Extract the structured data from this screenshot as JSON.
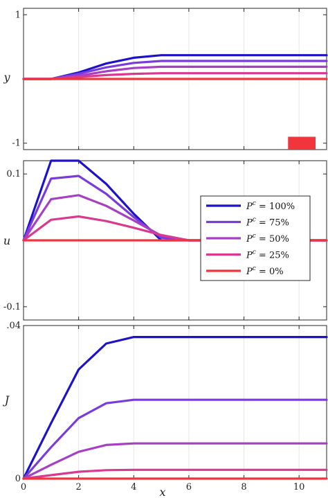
{
  "chart_data": [
    {
      "type": "line",
      "ylabel": "y",
      "xlim": [
        0,
        11
      ],
      "ylim": [
        -1.1,
        1.1
      ],
      "yticks": [
        {
          "v": 1,
          "label": "1"
        },
        {
          "v": -1,
          "label": "-1"
        }
      ],
      "x": [
        0,
        1,
        2,
        3,
        4,
        5,
        6,
        7,
        8,
        9,
        10,
        11
      ],
      "series": [
        {
          "name": "P^c = 100%",
          "color": "#1d12c8",
          "values": [
            0,
            0,
            0.1,
            0.24,
            0.33,
            0.37,
            0.37,
            0.37,
            0.37,
            0.37,
            0.37,
            0.37
          ]
        },
        {
          "name": "P^c = 75%",
          "color": "#7a3bdc",
          "values": [
            0,
            0,
            0.08,
            0.18,
            0.25,
            0.28,
            0.28,
            0.28,
            0.28,
            0.28,
            0.28,
            0.28
          ]
        },
        {
          "name": "P^c = 50%",
          "color": "#a63fc4",
          "values": [
            0,
            0,
            0.05,
            0.12,
            0.17,
            0.19,
            0.19,
            0.19,
            0.19,
            0.19,
            0.19,
            0.19
          ]
        },
        {
          "name": "P^c = 25%",
          "color": "#d9398f",
          "values": [
            0,
            0,
            0.03,
            0.06,
            0.08,
            0.09,
            0.09,
            0.09,
            0.09,
            0.09,
            0.09,
            0.09
          ]
        },
        {
          "name": "P^c = 0%",
          "color": "#f0353d",
          "values": [
            0,
            0,
            0,
            0,
            0,
            0,
            0,
            0,
            0,
            0,
            0,
            0
          ]
        }
      ],
      "marker": {
        "shape": "rect",
        "x": [
          9.6,
          10.6
        ],
        "y": [
          -1.1,
          -0.9
        ],
        "color": "#f0353d"
      }
    },
    {
      "type": "line",
      "ylabel": "u",
      "xlim": [
        0,
        11
      ],
      "ylim": [
        -0.12,
        0.12
      ],
      "yticks": [
        {
          "v": 0.1,
          "label": "0.1"
        },
        {
          "v": -0.1,
          "label": "-0.1"
        }
      ],
      "x": [
        0,
        1,
        2,
        3,
        4,
        5,
        6,
        7,
        8,
        9,
        10,
        11
      ],
      "series": [
        {
          "name": "P^c = 100%",
          "color": "#1d12c8",
          "values": [
            0,
            0.12,
            0.12,
            0.085,
            0.04,
            0,
            0,
            0,
            0,
            0,
            0,
            0
          ]
        },
        {
          "name": "P^c = 75%",
          "color": "#7a3bdc",
          "values": [
            0,
            0.093,
            0.097,
            0.07,
            0.035,
            0.004,
            0,
            0,
            0,
            0,
            0,
            0
          ]
        },
        {
          "name": "P^c = 50%",
          "color": "#a63fc4",
          "values": [
            0,
            0.062,
            0.068,
            0.052,
            0.03,
            0.007,
            0,
            0,
            0,
            0,
            0,
            0
          ]
        },
        {
          "name": "P^c = 25%",
          "color": "#d9398f",
          "values": [
            0,
            0.031,
            0.036,
            0.029,
            0.019,
            0.008,
            0,
            0,
            0,
            0,
            0,
            0
          ]
        },
        {
          "name": "P^c = 0%",
          "color": "#f0353d",
          "values": [
            0,
            0,
            0,
            0,
            0,
            0,
            0,
            0,
            0,
            0,
            0,
            0
          ]
        }
      ],
      "legend": {
        "position": "right",
        "entries": [
          {
            "sym": "P",
            "sup": "c",
            "val": " = 100%"
          },
          {
            "sym": "P",
            "sup": "c",
            "val": " = 75%"
          },
          {
            "sym": "P",
            "sup": "c",
            "val": " = 50%"
          },
          {
            "sym": "P",
            "sup": "c",
            "val": " = 25%"
          },
          {
            "sym": "P",
            "sup": "c",
            "val": " = 0%"
          }
        ]
      }
    },
    {
      "type": "line",
      "ylabel": "J",
      "xlabel": "x",
      "xlim": [
        0,
        11
      ],
      "ylim": [
        0,
        0.04
      ],
      "yticks": [
        {
          "v": 0.04,
          "label": ".04"
        },
        {
          "v": 0,
          "label": "0"
        }
      ],
      "xticks": [
        0,
        2,
        4,
        6,
        8,
        10
      ],
      "x": [
        0,
        1,
        2,
        3,
        4,
        5,
        6,
        7,
        8,
        9,
        10,
        11
      ],
      "series": [
        {
          "name": "P^c = 100%",
          "color": "#1d12c8",
          "values": [
            0,
            0.0145,
            0.0285,
            0.0353,
            0.037,
            0.037,
            0.037,
            0.037,
            0.037,
            0.037,
            0.037,
            0.037
          ]
        },
        {
          "name": "P^c = 75%",
          "color": "#7a3bdc",
          "values": [
            0,
            0.0082,
            0.0158,
            0.0197,
            0.0206,
            0.0206,
            0.0206,
            0.0206,
            0.0206,
            0.0206,
            0.0206,
            0.0206
          ]
        },
        {
          "name": "P^c = 50%",
          "color": "#a63fc4",
          "values": [
            0,
            0.0036,
            0.007,
            0.0088,
            0.0092,
            0.0092,
            0.0092,
            0.0092,
            0.0092,
            0.0092,
            0.0092,
            0.0092
          ]
        },
        {
          "name": "P^c = 25%",
          "color": "#d9398f",
          "values": [
            0,
            0.0009,
            0.0018,
            0.0022,
            0.0023,
            0.0023,
            0.0023,
            0.0023,
            0.0023,
            0.0023,
            0.0023,
            0.0023
          ]
        },
        {
          "name": "P^c = 0%",
          "color": "#f0353d",
          "values": [
            0,
            0,
            0,
            0,
            0,
            0,
            0,
            0,
            0,
            0,
            0,
            0
          ]
        }
      ]
    }
  ]
}
